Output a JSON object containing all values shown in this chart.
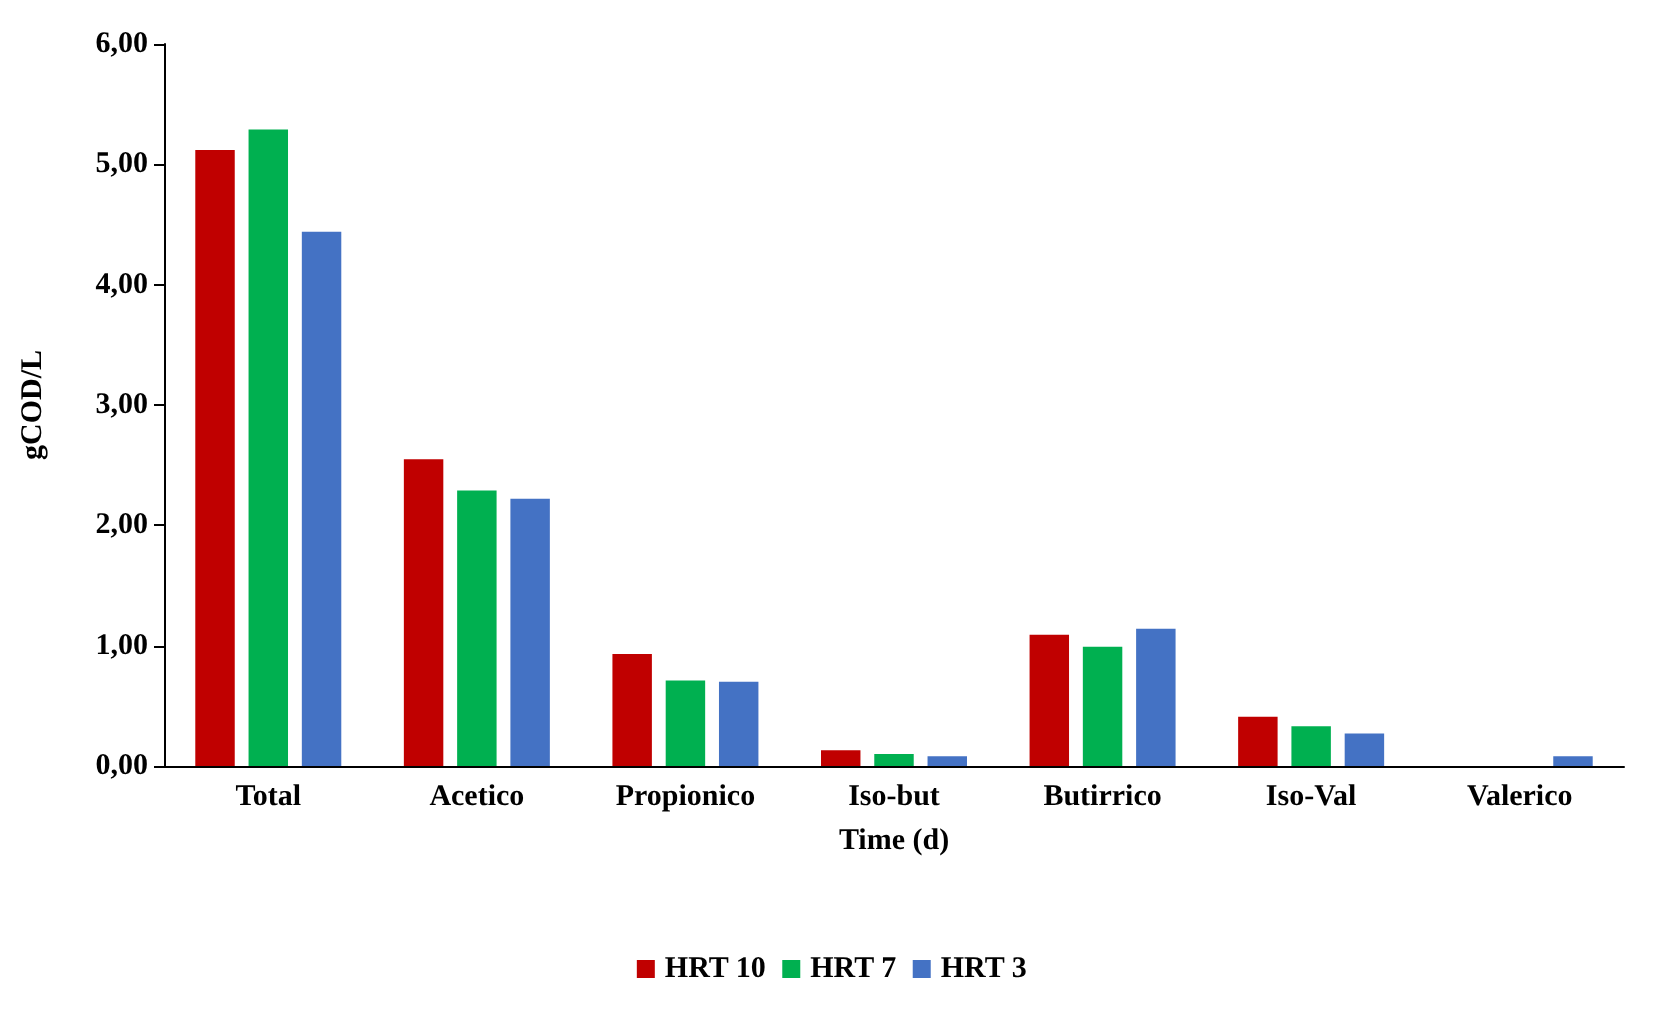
{
  "chart_data": {
    "type": "bar",
    "xlabel": "Time (d)",
    "ylabel": "gCOD/L",
    "categories": [
      "Total",
      "Acetico",
      "Propionico",
      "Iso-but",
      "Butirrico",
      "Iso-Val",
      "Valerico"
    ],
    "series": [
      {
        "name": "HRT 10",
        "color": "#c00000",
        "values": [
          5.12,
          2.55,
          0.93,
          0.13,
          1.09,
          0.41,
          0
        ]
      },
      {
        "name": "HRT 7",
        "color": "#00b050",
        "values": [
          5.29,
          2.29,
          0.71,
          0.1,
          0.99,
          0.33,
          0
        ]
      },
      {
        "name": "HRT 3",
        "color": "#4472c4",
        "values": [
          4.44,
          2.22,
          0.7,
          0.08,
          1.14,
          0.27,
          0.08
        ]
      }
    ],
    "ylim": [
      0,
      6
    ],
    "yticks": [
      {
        "value": 0,
        "label": "0,00"
      },
      {
        "value": 1,
        "label": "1,00"
      },
      {
        "value": 2,
        "label": "2,00"
      },
      {
        "value": 3,
        "label": "3,00"
      },
      {
        "value": 4,
        "label": "4,00"
      },
      {
        "value": 5,
        "label": "5,00"
      },
      {
        "value": 6,
        "label": "6,00"
      }
    ],
    "grid": false,
    "legend": "bottom"
  }
}
